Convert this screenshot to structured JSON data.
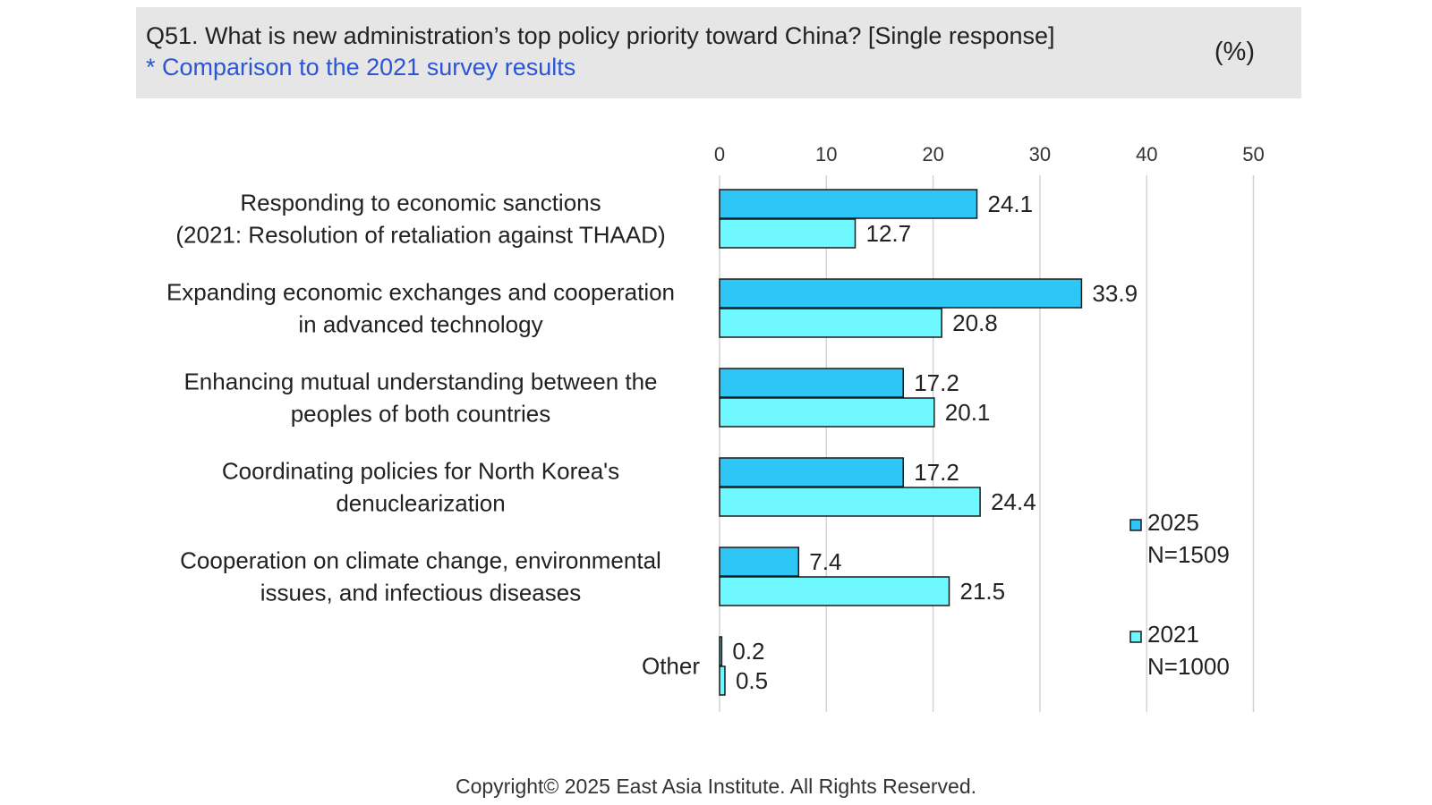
{
  "header": {
    "title": "Q51. What is new administration’s top policy priority toward China? [Single response]",
    "subtitle": "* Comparison to the 2021 survey results",
    "unit": "(%)"
  },
  "footer": {
    "copyright": "Copyright© 2025 East Asia Institute. All Rights Reserved."
  },
  "colors": {
    "series_2025": "#2ec6f7",
    "series_2021": "#6ff8ff",
    "bar_outline": "#1a1a1a",
    "grid": "#d4d4d4",
    "header_bg": "#e6e6e6",
    "subtitle": "#2c55d6"
  },
  "chart_data": {
    "type": "bar",
    "orientation": "horizontal",
    "categories": [
      [
        "Responding to economic sanctions",
        "(2021: Resolution of retaliation against THAAD)"
      ],
      [
        "Expanding economic exchanges and cooperation",
        "in advanced technology"
      ],
      [
        "Enhancing mutual understanding between the",
        "peoples of both countries"
      ],
      [
        "Coordinating policies for North Korea's",
        "denuclearization"
      ],
      [
        "Cooperation on climate change, environmental",
        "issues, and infectious diseases"
      ],
      [
        "Other"
      ]
    ],
    "series": [
      {
        "name": "2025",
        "note": "N=1509",
        "values": [
          24.1,
          33.9,
          17.2,
          17.2,
          7.4,
          0.2
        ]
      },
      {
        "name": "2021",
        "note": "N=1000",
        "values": [
          12.7,
          20.8,
          20.1,
          24.4,
          21.5,
          0.5
        ]
      }
    ],
    "xlim": [
      0,
      50
    ],
    "xticks": [
      0,
      10,
      20,
      30,
      40,
      50
    ],
    "grid": true,
    "legend_position": "bottom-right"
  }
}
